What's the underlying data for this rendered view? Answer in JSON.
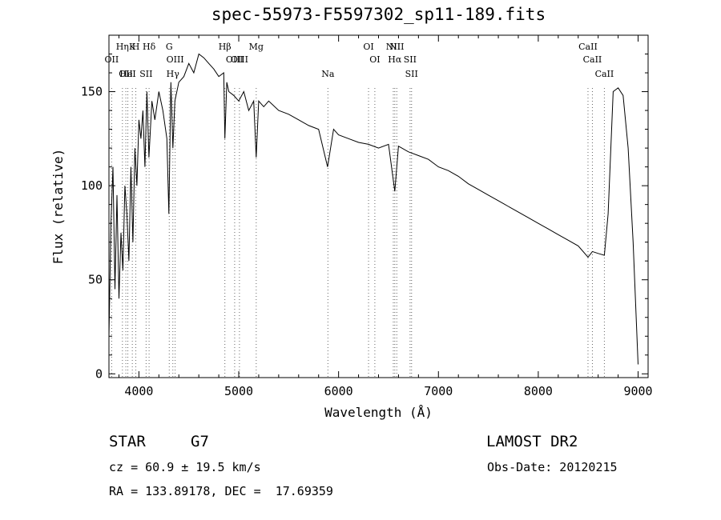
{
  "title": "spec-55973-F5597302_sp11-189.fits",
  "chart_data": {
    "type": "line",
    "xlabel": "Wavelength (Å)",
    "ylabel": "Flux (relative)",
    "xlim": [
      3700,
      9100
    ],
    "ylim": [
      -2,
      180
    ],
    "xticks": [
      4000,
      5000,
      6000,
      7000,
      8000,
      9000
    ],
    "yticks": [
      0,
      50,
      100,
      150
    ],
    "grid": false,
    "series": [
      {
        "x": [
          3700,
          3720,
          3740,
          3760,
          3780,
          3800,
          3820,
          3840,
          3860,
          3880,
          3900,
          3920,
          3940,
          3960,
          3980,
          4000,
          4020,
          4040,
          4060,
          4080,
          4100,
          4130,
          4160,
          4200,
          4240,
          4280,
          4300,
          4320,
          4340,
          4360,
          4400,
          4450,
          4500,
          4550,
          4600,
          4650,
          4700,
          4750,
          4800,
          4850,
          4861,
          4880,
          4900,
          4950,
          5000,
          5050,
          5100,
          5150,
          5175,
          5200,
          5250,
          5300,
          5400,
          5500,
          5600,
          5700,
          5800,
          5890,
          5950,
          6000,
          6100,
          6200,
          6300,
          6400,
          6500,
          6563,
          6600,
          6700,
          6800,
          6900,
          7000,
          7100,
          7200,
          7300,
          7400,
          7500,
          7600,
          7700,
          7800,
          7900,
          8000,
          8100,
          8200,
          8300,
          8400,
          8498,
          8542,
          8600,
          8662,
          8700,
          8750,
          8800,
          8850,
          8900,
          8950,
          9000
        ],
        "values": [
          20,
          80,
          110,
          45,
          95,
          40,
          75,
          55,
          100,
          85,
          60,
          110,
          70,
          120,
          100,
          135,
          125,
          140,
          110,
          150,
          115,
          145,
          135,
          150,
          140,
          125,
          85,
          155,
          120,
          145,
          155,
          158,
          165,
          160,
          170,
          168,
          165,
          162,
          158,
          160,
          125,
          155,
          150,
          148,
          145,
          150,
          140,
          145,
          115,
          145,
          142,
          145,
          140,
          138,
          135,
          132,
          130,
          110,
          130,
          127,
          125,
          123,
          122,
          120,
          122,
          97,
          121,
          118,
          116,
          114,
          110,
          108,
          105,
          101,
          98,
          95,
          92,
          89,
          86,
          83,
          80,
          77,
          74,
          71,
          68,
          62,
          65,
          64,
          63,
          85,
          150,
          152,
          148,
          120,
          70,
          5
        ]
      }
    ],
    "lines": [
      {
        "name": "OII",
        "wavelength": 3727
      },
      {
        "name": "Hη",
        "wavelength": 3835
      },
      {
        "name": "OII",
        "wavelength": 3869
      },
      {
        "name": "K",
        "wavelength": 3934
      },
      {
        "name": "HeI",
        "wavelength": 3889
      },
      {
        "name": "H",
        "wavelength": 3969
      },
      {
        "name": "Hδ",
        "wavelength": 4102
      },
      {
        "name": "SII",
        "wavelength": 4072
      },
      {
        "name": "G",
        "wavelength": 4304
      },
      {
        "name": "OIII",
        "wavelength": 4363
      },
      {
        "name": "Hγ",
        "wavelength": 4340
      },
      {
        "name": "Hβ",
        "wavelength": 4861
      },
      {
        "name": "OIII",
        "wavelength": 4959
      },
      {
        "name": "OIII",
        "wavelength": 5007
      },
      {
        "name": "Mg",
        "wavelength": 5175
      },
      {
        "name": "Na",
        "wavelength": 5893
      },
      {
        "name": "OI",
        "wavelength": 6300
      },
      {
        "name": "OI",
        "wavelength": 6363
      },
      {
        "name": "NII",
        "wavelength": 6548
      },
      {
        "name": "Hα",
        "wavelength": 6563
      },
      {
        "name": "NII",
        "wavelength": 6583
      },
      {
        "name": "SII",
        "wavelength": 6716
      },
      {
        "name": "SII",
        "wavelength": 6731
      },
      {
        "name": "CaII",
        "wavelength": 8498
      },
      {
        "name": "CaII",
        "wavelength": 8542
      },
      {
        "name": "CaII",
        "wavelength": 8662
      }
    ]
  },
  "info": {
    "object_class": "STAR",
    "subclass": "G7",
    "survey": "LAMOST DR2",
    "cz": "cz = 60.9 ± 19.5 km/s",
    "obs_date": "Obs-Date: 20120215",
    "coords": "RA = 133.89178, DEC =  17.69359"
  }
}
